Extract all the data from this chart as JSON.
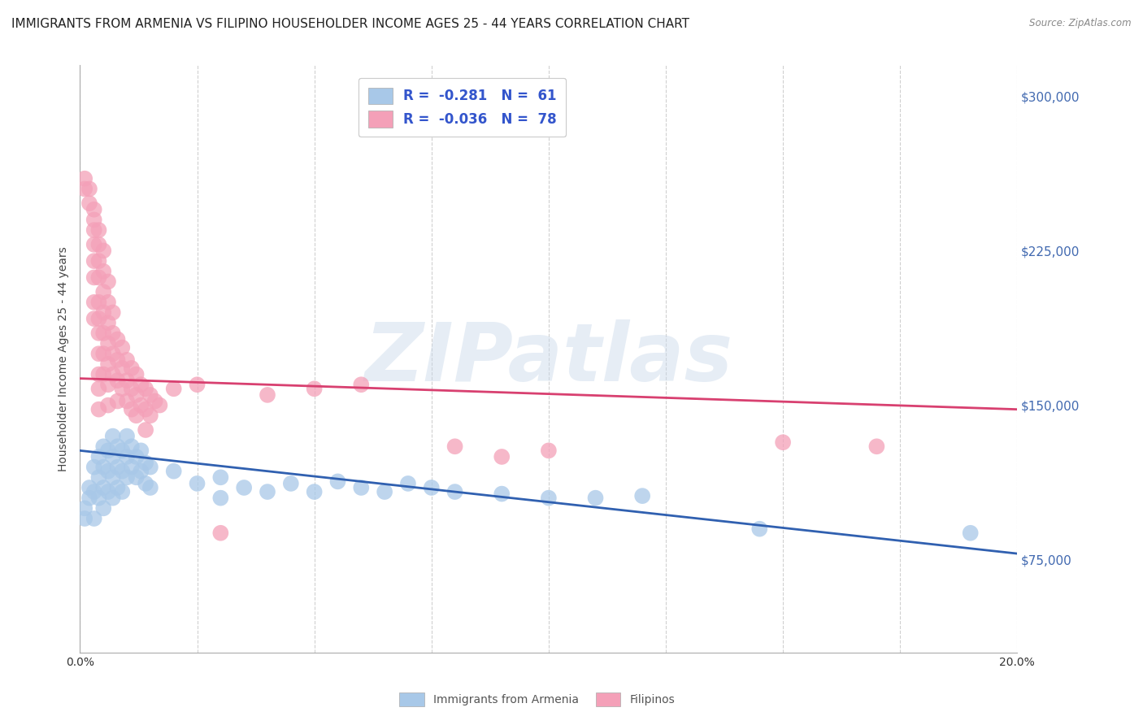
{
  "title": "IMMIGRANTS FROM ARMENIA VS FILIPINO HOUSEHOLDER INCOME AGES 25 - 44 YEARS CORRELATION CHART",
  "source": "Source: ZipAtlas.com",
  "ylabel": "Householder Income Ages 25 - 44 years",
  "xlim": [
    0.0,
    0.2
  ],
  "ylim": [
    30000,
    315000
  ],
  "ytick_labels_right": [
    "$75,000",
    "$150,000",
    "$225,000",
    "$300,000"
  ],
  "ytick_values_right": [
    75000,
    150000,
    225000,
    300000
  ],
  "color_armenia": "#a8c8e8",
  "color_filipinos": "#f4a0b8",
  "color_line_armenia": "#3060b0",
  "color_line_filipinos": "#d84070",
  "watermark": "ZIPatlas",
  "armenia_scatter": [
    [
      0.001,
      100000
    ],
    [
      0.001,
      95000
    ],
    [
      0.002,
      110000
    ],
    [
      0.002,
      105000
    ],
    [
      0.003,
      120000
    ],
    [
      0.003,
      108000
    ],
    [
      0.003,
      95000
    ],
    [
      0.004,
      125000
    ],
    [
      0.004,
      115000
    ],
    [
      0.004,
      105000
    ],
    [
      0.005,
      130000
    ],
    [
      0.005,
      120000
    ],
    [
      0.005,
      110000
    ],
    [
      0.005,
      100000
    ],
    [
      0.006,
      128000
    ],
    [
      0.006,
      118000
    ],
    [
      0.006,
      108000
    ],
    [
      0.007,
      135000
    ],
    [
      0.007,
      125000
    ],
    [
      0.007,
      115000
    ],
    [
      0.007,
      105000
    ],
    [
      0.008,
      130000
    ],
    [
      0.008,
      120000
    ],
    [
      0.008,
      110000
    ],
    [
      0.009,
      128000
    ],
    [
      0.009,
      118000
    ],
    [
      0.009,
      108000
    ],
    [
      0.01,
      135000
    ],
    [
      0.01,
      125000
    ],
    [
      0.01,
      115000
    ],
    [
      0.011,
      130000
    ],
    [
      0.011,
      120000
    ],
    [
      0.012,
      125000
    ],
    [
      0.012,
      115000
    ],
    [
      0.013,
      128000
    ],
    [
      0.013,
      118000
    ],
    [
      0.014,
      122000
    ],
    [
      0.014,
      112000
    ],
    [
      0.015,
      120000
    ],
    [
      0.015,
      110000
    ],
    [
      0.02,
      118000
    ],
    [
      0.025,
      112000
    ],
    [
      0.03,
      115000
    ],
    [
      0.03,
      105000
    ],
    [
      0.035,
      110000
    ],
    [
      0.04,
      108000
    ],
    [
      0.045,
      112000
    ],
    [
      0.05,
      108000
    ],
    [
      0.055,
      113000
    ],
    [
      0.06,
      110000
    ],
    [
      0.065,
      108000
    ],
    [
      0.07,
      112000
    ],
    [
      0.075,
      110000
    ],
    [
      0.08,
      108000
    ],
    [
      0.09,
      107000
    ],
    [
      0.1,
      105000
    ],
    [
      0.11,
      105000
    ],
    [
      0.12,
      106000
    ],
    [
      0.145,
      90000
    ],
    [
      0.19,
      88000
    ]
  ],
  "filipinos_scatter": [
    [
      0.001,
      260000
    ],
    [
      0.001,
      255000
    ],
    [
      0.002,
      255000
    ],
    [
      0.002,
      248000
    ],
    [
      0.003,
      245000
    ],
    [
      0.003,
      240000
    ],
    [
      0.003,
      235000
    ],
    [
      0.003,
      228000
    ],
    [
      0.003,
      220000
    ],
    [
      0.003,
      212000
    ],
    [
      0.003,
      200000
    ],
    [
      0.003,
      192000
    ],
    [
      0.004,
      235000
    ],
    [
      0.004,
      228000
    ],
    [
      0.004,
      220000
    ],
    [
      0.004,
      212000
    ],
    [
      0.004,
      200000
    ],
    [
      0.004,
      192000
    ],
    [
      0.004,
      185000
    ],
    [
      0.004,
      175000
    ],
    [
      0.004,
      165000
    ],
    [
      0.004,
      158000
    ],
    [
      0.004,
      148000
    ],
    [
      0.005,
      225000
    ],
    [
      0.005,
      215000
    ],
    [
      0.005,
      205000
    ],
    [
      0.005,
      195000
    ],
    [
      0.005,
      185000
    ],
    [
      0.005,
      175000
    ],
    [
      0.005,
      165000
    ],
    [
      0.006,
      210000
    ],
    [
      0.006,
      200000
    ],
    [
      0.006,
      190000
    ],
    [
      0.006,
      180000
    ],
    [
      0.006,
      170000
    ],
    [
      0.006,
      160000
    ],
    [
      0.006,
      150000
    ],
    [
      0.007,
      195000
    ],
    [
      0.007,
      185000
    ],
    [
      0.007,
      175000
    ],
    [
      0.007,
      165000
    ],
    [
      0.008,
      182000
    ],
    [
      0.008,
      172000
    ],
    [
      0.008,
      162000
    ],
    [
      0.008,
      152000
    ],
    [
      0.009,
      178000
    ],
    [
      0.009,
      168000
    ],
    [
      0.009,
      158000
    ],
    [
      0.01,
      172000
    ],
    [
      0.01,
      162000
    ],
    [
      0.01,
      152000
    ],
    [
      0.011,
      168000
    ],
    [
      0.011,
      158000
    ],
    [
      0.011,
      148000
    ],
    [
      0.012,
      165000
    ],
    [
      0.012,
      155000
    ],
    [
      0.012,
      145000
    ],
    [
      0.013,
      160000
    ],
    [
      0.013,
      150000
    ],
    [
      0.014,
      158000
    ],
    [
      0.014,
      148000
    ],
    [
      0.014,
      138000
    ],
    [
      0.015,
      155000
    ],
    [
      0.015,
      145000
    ],
    [
      0.016,
      152000
    ],
    [
      0.017,
      150000
    ],
    [
      0.02,
      158000
    ],
    [
      0.025,
      160000
    ],
    [
      0.03,
      88000
    ],
    [
      0.04,
      155000
    ],
    [
      0.05,
      158000
    ],
    [
      0.06,
      160000
    ],
    [
      0.08,
      130000
    ],
    [
      0.09,
      125000
    ],
    [
      0.1,
      128000
    ],
    [
      0.15,
      132000
    ],
    [
      0.17,
      130000
    ]
  ],
  "armenia_line": [
    [
      0.0,
      128000
    ],
    [
      0.2,
      78000
    ]
  ],
  "filipinos_line": [
    [
      0.0,
      163000
    ],
    [
      0.2,
      148000
    ]
  ],
  "background_color": "#ffffff",
  "grid_color": "#d0d0d0",
  "title_fontsize": 11,
  "axis_label_fontsize": 10,
  "tick_fontsize": 10
}
